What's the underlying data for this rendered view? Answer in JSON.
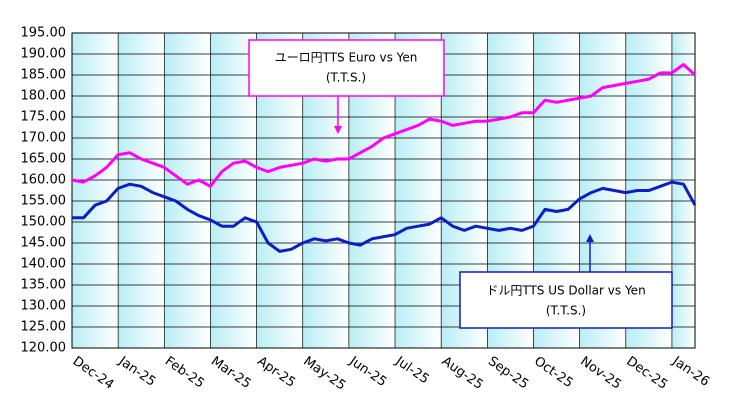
{
  "chart_data": {
    "type": "line",
    "categories": [
      "Dec-24",
      null,
      null,
      null,
      "Jan-25",
      null,
      null,
      null,
      "Feb-25",
      null,
      null,
      null,
      "Mar-25",
      null,
      null,
      null,
      "Apr-25",
      null,
      null,
      null,
      "May-25",
      null,
      null,
      null,
      "Jun-25",
      null,
      null,
      null,
      "Jul-25",
      null,
      null,
      null,
      "Aug-25",
      null,
      null,
      null,
      "Sep-25",
      null,
      null,
      null,
      "Oct-25",
      null,
      null,
      null,
      "Nov-25",
      null,
      null,
      null,
      "Dec-25",
      null,
      null,
      null,
      "Jan-26",
      null,
      null
    ],
    "series": [
      {
        "name": "ユーロ円TTS Euro vs Yen",
        "color": "#ff00ff",
        "values": [
          160,
          159.5,
          161,
          163,
          166,
          166.5,
          165,
          164,
          163,
          161,
          159,
          160,
          158.5,
          162,
          164,
          164.5,
          163,
          162,
          163,
          163.5,
          164,
          165,
          164.5,
          165,
          165,
          166.5,
          168,
          170,
          171,
          172,
          173,
          174.5,
          174,
          173,
          173.5,
          174,
          174,
          174.5,
          175,
          176,
          176,
          179,
          178.5,
          179,
          179.5,
          180,
          182,
          182.5,
          183,
          183.5,
          184,
          185.5,
          185.5,
          187.5,
          185
        ]
      },
      {
        "name": "ドル円TTS  US Dollar vs Yen",
        "color": "#0a1fc8",
        "values": [
          151,
          151,
          154,
          155,
          158,
          159,
          158.5,
          157,
          156,
          155,
          153,
          151.5,
          150.5,
          149,
          149,
          151,
          150,
          145,
          143,
          143.5,
          145,
          146,
          145.5,
          146,
          145,
          144.5,
          146,
          146.5,
          147,
          148.5,
          149,
          149.5,
          151,
          149,
          148,
          149,
          148.5,
          148,
          148.5,
          148,
          149,
          153,
          152.5,
          153,
          155.5,
          157,
          158,
          157.5,
          157,
          157.5,
          157.5,
          158.5,
          159.5,
          159,
          154
        ]
      }
    ],
    "annotations": [
      [
        "ユーロ円TTS Euro vs Yen",
        "(T.T.S.)"
      ],
      [
        "ドル円TTS  US Dollar vs Yen",
        "(T.T.S.)"
      ]
    ],
    "ylim": [
      120,
      195
    ],
    "yticks": [
      {
        "value": 120,
        "label": "120.00"
      },
      {
        "value": 125,
        "label": "125.00"
      },
      {
        "value": 130,
        "label": "130.00"
      },
      {
        "value": 135,
        "label": "135.00"
      },
      {
        "value": 140,
        "label": "140.00"
      },
      {
        "value": 145,
        "label": "145.00"
      },
      {
        "value": 150,
        "label": "150.00"
      },
      {
        "value": 155,
        "label": "155.00"
      },
      {
        "value": 160,
        "label": "160.00"
      },
      {
        "value": 165,
        "label": "165.00"
      },
      {
        "value": 170,
        "label": "170.00"
      },
      {
        "value": 175,
        "label": "175.00"
      },
      {
        "value": 180,
        "label": "180.00"
      },
      {
        "value": 185,
        "label": "185.00"
      },
      {
        "value": 190,
        "label": "190.00"
      },
      {
        "value": 195,
        "label": "195.00"
      }
    ],
    "grid": true
  }
}
